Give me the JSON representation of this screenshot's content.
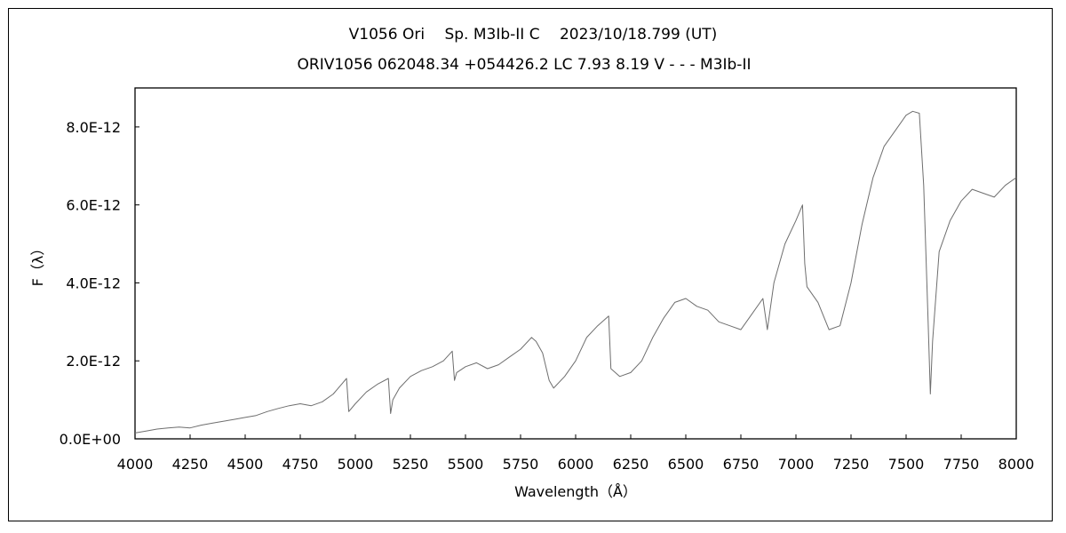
{
  "chart_data": {
    "type": "line",
    "title": "V1056 Ori　 Sp. M3Ib-II C　 2023/10/18.799 (UT)",
    "subtitle": "ORIV1056 062048.34 +054426.2 LC 7.93 8.19 V - - - M3Ib-II",
    "xlabel": "Wavelength（Å）",
    "ylabel": "F（λ）",
    "xlim": [
      4000,
      8000
    ],
    "ylim": [
      0,
      9e-12
    ],
    "x_ticks": [
      4000,
      4250,
      4500,
      4750,
      5000,
      5250,
      5500,
      5750,
      6000,
      6250,
      6500,
      6750,
      7000,
      7250,
      7500,
      7750,
      8000
    ],
    "x_tick_labels": [
      "4000",
      "4250",
      "4500",
      "4750",
      "5000",
      "5250",
      "5500",
      "5750",
      "6000",
      "6250",
      "6500",
      "6750",
      "7000",
      "7250",
      "7500",
      "7750",
      "8000"
    ],
    "y_ticks": [
      0,
      2e-12,
      4e-12,
      6e-12,
      8e-12
    ],
    "y_tick_labels": [
      "0.0E+00",
      "2.0E-12",
      "4.0E-12",
      "6.0E-12",
      "8.0E-12"
    ],
    "grid": false,
    "legend": "none",
    "line_color": "#6e6e6e",
    "series": [
      {
        "x": [
          4000,
          4050,
          4100,
          4150,
          4200,
          4250,
          4300,
          4350,
          4400,
          4450,
          4500,
          4550,
          4600,
          4650,
          4700,
          4750,
          4800,
          4850,
          4900,
          4930,
          4960,
          4970,
          5000,
          5050,
          5100,
          5150,
          5160,
          5170,
          5200,
          5250,
          5300,
          5350,
          5400,
          5440,
          5450,
          5460,
          5500,
          5550,
          5600,
          5650,
          5700,
          5750,
          5800,
          5820,
          5850,
          5880,
          5900,
          5950,
          6000,
          6050,
          6100,
          6150,
          6160,
          6200,
          6250,
          6300,
          6350,
          6400,
          6450,
          6500,
          6550,
          6600,
          6650,
          6700,
          6750,
          6800,
          6850,
          6870,
          6900,
          6950,
          7000,
          7030,
          7040,
          7050,
          7100,
          7150,
          7200,
          7250,
          7300,
          7350,
          7400,
          7450,
          7500,
          7530,
          7560,
          7580,
          7600,
          7610,
          7620,
          7650,
          7700,
          7750,
          7800,
          7850,
          7900,
          7950,
          8000
        ],
        "y": [
          1.5e-13,
          2e-13,
          2.5e-13,
          2.8e-13,
          3e-13,
          2.8e-13,
          3.5e-13,
          4e-13,
          4.5e-13,
          5e-13,
          5.5e-13,
          6e-13,
          7e-13,
          7.8e-13,
          8.5e-13,
          9e-13,
          8.5e-13,
          9.5e-13,
          1.15e-12,
          1.35e-12,
          1.55e-12,
          7e-13,
          9e-13,
          1.2e-12,
          1.4e-12,
          1.55e-12,
          6.5e-13,
          1e-12,
          1.3e-12,
          1.6e-12,
          1.75e-12,
          1.85e-12,
          2e-12,
          2.25e-12,
          1.5e-12,
          1.7e-12,
          1.85e-12,
          1.95e-12,
          1.8e-12,
          1.9e-12,
          2.1e-12,
          2.3e-12,
          2.6e-12,
          2.5e-12,
          2.2e-12,
          1.5e-12,
          1.3e-12,
          1.6e-12,
          2e-12,
          2.6e-12,
          2.9e-12,
          3.15e-12,
          1.8e-12,
          1.6e-12,
          1.7e-12,
          2e-12,
          2.6e-12,
          3.1e-12,
          3.5e-12,
          3.6e-12,
          3.4e-12,
          3.3e-12,
          3e-12,
          2.9e-12,
          2.8e-12,
          3.2e-12,
          3.6e-12,
          2.8e-12,
          4e-12,
          5e-12,
          5.6e-12,
          6e-12,
          4.5e-12,
          3.9e-12,
          3.5e-12,
          2.8e-12,
          2.9e-12,
          4e-12,
          5.5e-12,
          6.7e-12,
          7.5e-12,
          7.9e-12,
          8.3e-12,
          8.4e-12,
          8.35e-12,
          6.5e-12,
          3e-12,
          1.15e-12,
          2.5e-12,
          4.8e-12,
          5.6e-12,
          6.1e-12,
          6.4e-12,
          6.3e-12,
          6.2e-12,
          6.5e-12,
          6.7e-12
        ]
      }
    ]
  }
}
